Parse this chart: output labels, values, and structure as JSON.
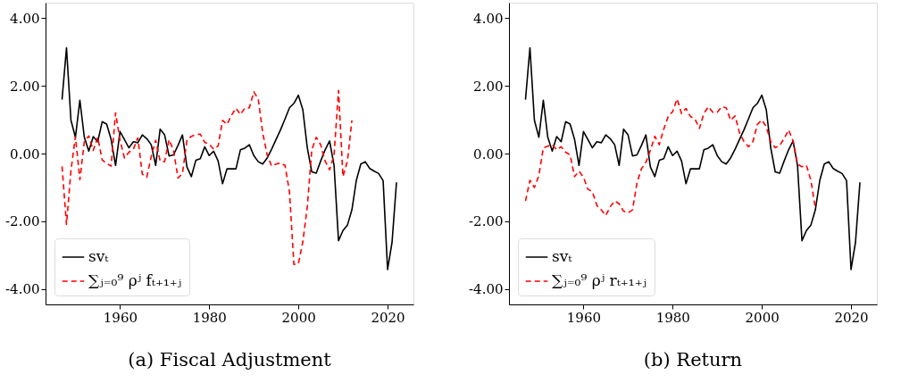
{
  "chart_data": [
    {
      "type": "line",
      "title": "(a) Fiscal Adjustment",
      "xlim": [
        1943.3,
        2025.8
      ],
      "xticks": [
        1960,
        1980,
        2000,
        2020
      ],
      "ylim": [
        -4.45,
        4.45
      ],
      "yticks": [
        {
          "value": 4,
          "label": "4.00"
        },
        {
          "value": 2,
          "label": "2.00"
        },
        {
          "value": 0,
          "label": "0.00"
        },
        {
          "value": -2,
          "label": "-2.00"
        },
        {
          "value": -4,
          "label": "-4.00"
        }
      ],
      "grid": false,
      "legend": "bottom left",
      "x": [
        1947,
        1948,
        1949,
        1950,
        1951,
        1952,
        1953,
        1954,
        1955,
        1956,
        1957,
        1958,
        1959,
        1960,
        1961,
        1962,
        1963,
        1964,
        1965,
        1966,
        1967,
        1968,
        1969,
        1970,
        1971,
        1972,
        1973,
        1974,
        1975,
        1976,
        1977,
        1978,
        1979,
        1980,
        1981,
        1982,
        1983,
        1984,
        1985,
        1986,
        1987,
        1988,
        1989,
        1990,
        1991,
        1992,
        1993,
        1994,
        1995,
        1996,
        1997,
        1998,
        1999,
        2000,
        2001,
        2002,
        2003,
        2004,
        2005,
        2006,
        2007,
        2008,
        2009,
        2010,
        2011,
        2012,
        2013,
        2014,
        2015,
        2016,
        2017,
        2018,
        2019,
        2020,
        2021,
        2022
      ],
      "series": [
        {
          "name": "svₜ",
          "color": "#000000",
          "line_style": "solid",
          "values": [
            1.59,
            3.12,
            0.98,
            0.48,
            1.57,
            0.48,
            0.07,
            0.5,
            0.35,
            0.94,
            0.87,
            0.42,
            -0.35,
            0.65,
            0.41,
            0.17,
            0.35,
            0.32,
            0.55,
            0.44,
            0.26,
            -0.35,
            0.72,
            0.55,
            -0.07,
            -0.04,
            0.24,
            0.55,
            -0.39,
            -0.68,
            -0.2,
            -0.15,
            0.2,
            -0.06,
            0.07,
            -0.22,
            -0.89,
            -0.45,
            -0.45,
            -0.45,
            0.11,
            0.16,
            0.26,
            -0.06,
            -0.24,
            -0.31,
            -0.13,
            0.13,
            0.42,
            0.7,
            1.02,
            1.35,
            1.48,
            1.72,
            1.29,
            0.17,
            -0.54,
            -0.58,
            -0.22,
            0.11,
            0.37,
            -0.35,
            -2.57,
            -2.27,
            -2.11,
            -1.66,
            -0.79,
            -0.31,
            -0.24,
            -0.44,
            -0.52,
            -0.59,
            -0.8,
            -3.42,
            -2.62,
            -0.85
          ]
        },
        {
          "name": "∑ⱼ₌₀⁹ ρʲ fₜ₊₁₊ⱼ",
          "color": "#ff0000",
          "line_style": "dashed",
          "values": [
            -0.38,
            -2.09,
            -0.5,
            0.5,
            -0.77,
            0.35,
            0.52,
            0.09,
            0.48,
            -0.19,
            -0.29,
            -0.37,
            1.2,
            0.39,
            -0.13,
            0.04,
            0.13,
            0.46,
            -0.61,
            -0.7,
            -0.09,
            0.39,
            -0.22,
            -0.24,
            0.41,
            0.09,
            -0.72,
            -0.59,
            0.39,
            0.51,
            0.56,
            0.57,
            0.33,
            0.28,
            0.13,
            0.22,
            0.98,
            0.86,
            1.13,
            1.34,
            1.15,
            1.34,
            1.35,
            1.82,
            1.61,
            0.61,
            -0.04,
            -0.37,
            -0.31,
            -0.28,
            -0.35,
            -1.13,
            -3.27,
            -3.25,
            -2.6,
            -1.57,
            0.11,
            0.48,
            0.26,
            -0.22,
            -0.48,
            -0.04,
            1.86,
            -0.68,
            -0.22,
            0.98,
            null,
            null,
            null,
            null,
            null,
            null,
            null,
            null,
            null,
            null
          ]
        }
      ]
    },
    {
      "type": "line",
      "title": "(b) Return",
      "xlim": [
        1943.3,
        2025.8
      ],
      "xticks": [
        1960,
        1980,
        2000,
        2020
      ],
      "ylim": [
        -4.45,
        4.45
      ],
      "yticks": [
        {
          "value": 4,
          "label": "4.00"
        },
        {
          "value": 2,
          "label": "2.00"
        },
        {
          "value": 0,
          "label": "0.00"
        },
        {
          "value": -2,
          "label": "-2.00"
        },
        {
          "value": -4,
          "label": "-4.00"
        }
      ],
      "grid": false,
      "legend": "bottom left",
      "x": [
        1947,
        1948,
        1949,
        1950,
        1951,
        1952,
        1953,
        1954,
        1955,
        1956,
        1957,
        1958,
        1959,
        1960,
        1961,
        1962,
        1963,
        1964,
        1965,
        1966,
        1967,
        1968,
        1969,
        1970,
        1971,
        1972,
        1973,
        1974,
        1975,
        1976,
        1977,
        1978,
        1979,
        1980,
        1981,
        1982,
        1983,
        1984,
        1985,
        1986,
        1987,
        1988,
        1989,
        1990,
        1991,
        1992,
        1993,
        1994,
        1995,
        1996,
        1997,
        1998,
        1999,
        2000,
        2001,
        2002,
        2003,
        2004,
        2005,
        2006,
        2007,
        2008,
        2009,
        2010,
        2011,
        2012,
        2013,
        2014,
        2015,
        2016,
        2017,
        2018,
        2019,
        2020,
        2021,
        2022
      ],
      "series": [
        {
          "name": "svₜ",
          "color": "#000000",
          "line_style": "solid",
          "values": [
            1.59,
            3.12,
            0.98,
            0.48,
            1.57,
            0.48,
            0.07,
            0.5,
            0.35,
            0.94,
            0.87,
            0.42,
            -0.35,
            0.65,
            0.41,
            0.17,
            0.35,
            0.32,
            0.55,
            0.44,
            0.26,
            -0.35,
            0.72,
            0.55,
            -0.07,
            -0.04,
            0.24,
            0.55,
            -0.39,
            -0.68,
            -0.2,
            -0.15,
            0.2,
            -0.06,
            0.07,
            -0.22,
            -0.89,
            -0.45,
            -0.45,
            -0.45,
            0.11,
            0.16,
            0.26,
            -0.06,
            -0.24,
            -0.31,
            -0.13,
            0.13,
            0.42,
            0.7,
            1.02,
            1.35,
            1.48,
            1.72,
            1.29,
            0.17,
            -0.54,
            -0.58,
            -0.22,
            0.11,
            0.37,
            -0.35,
            -2.57,
            -2.27,
            -2.11,
            -1.66,
            -0.79,
            -0.31,
            -0.24,
            -0.44,
            -0.52,
            -0.59,
            -0.8,
            -3.42,
            -2.62,
            -0.85
          ]
        },
        {
          "name": "∑ⱼ₌₀⁹ ρʲ rₜ₊₁₊ⱼ",
          "color": "#ff0000",
          "line_style": "dashed",
          "values": [
            -1.4,
            -0.79,
            -1.0,
            -0.65,
            0.17,
            0.22,
            0.26,
            0.11,
            0.2,
            0.04,
            -0.04,
            -0.68,
            -0.52,
            -0.7,
            -1.05,
            -1.13,
            -1.53,
            -1.66,
            -1.83,
            -1.57,
            -1.4,
            -1.48,
            -1.7,
            -1.75,
            -1.66,
            -0.87,
            -0.45,
            -0.26,
            0.09,
            0.51,
            0.26,
            0.72,
            1.09,
            1.24,
            1.61,
            1.18,
            1.33,
            1.09,
            1.02,
            0.74,
            1.18,
            1.38,
            1.22,
            1.22,
            1.38,
            1.35,
            0.98,
            1.11,
            0.61,
            0.35,
            0.2,
            0.35,
            0.86,
            0.99,
            0.79,
            0.35,
            0.17,
            0.24,
            0.44,
            0.7,
            0.37,
            -0.31,
            -0.39,
            -0.35,
            -0.79,
            -1.61,
            null,
            null,
            null,
            null,
            null,
            null,
            null,
            null,
            null,
            null
          ]
        }
      ]
    }
  ]
}
